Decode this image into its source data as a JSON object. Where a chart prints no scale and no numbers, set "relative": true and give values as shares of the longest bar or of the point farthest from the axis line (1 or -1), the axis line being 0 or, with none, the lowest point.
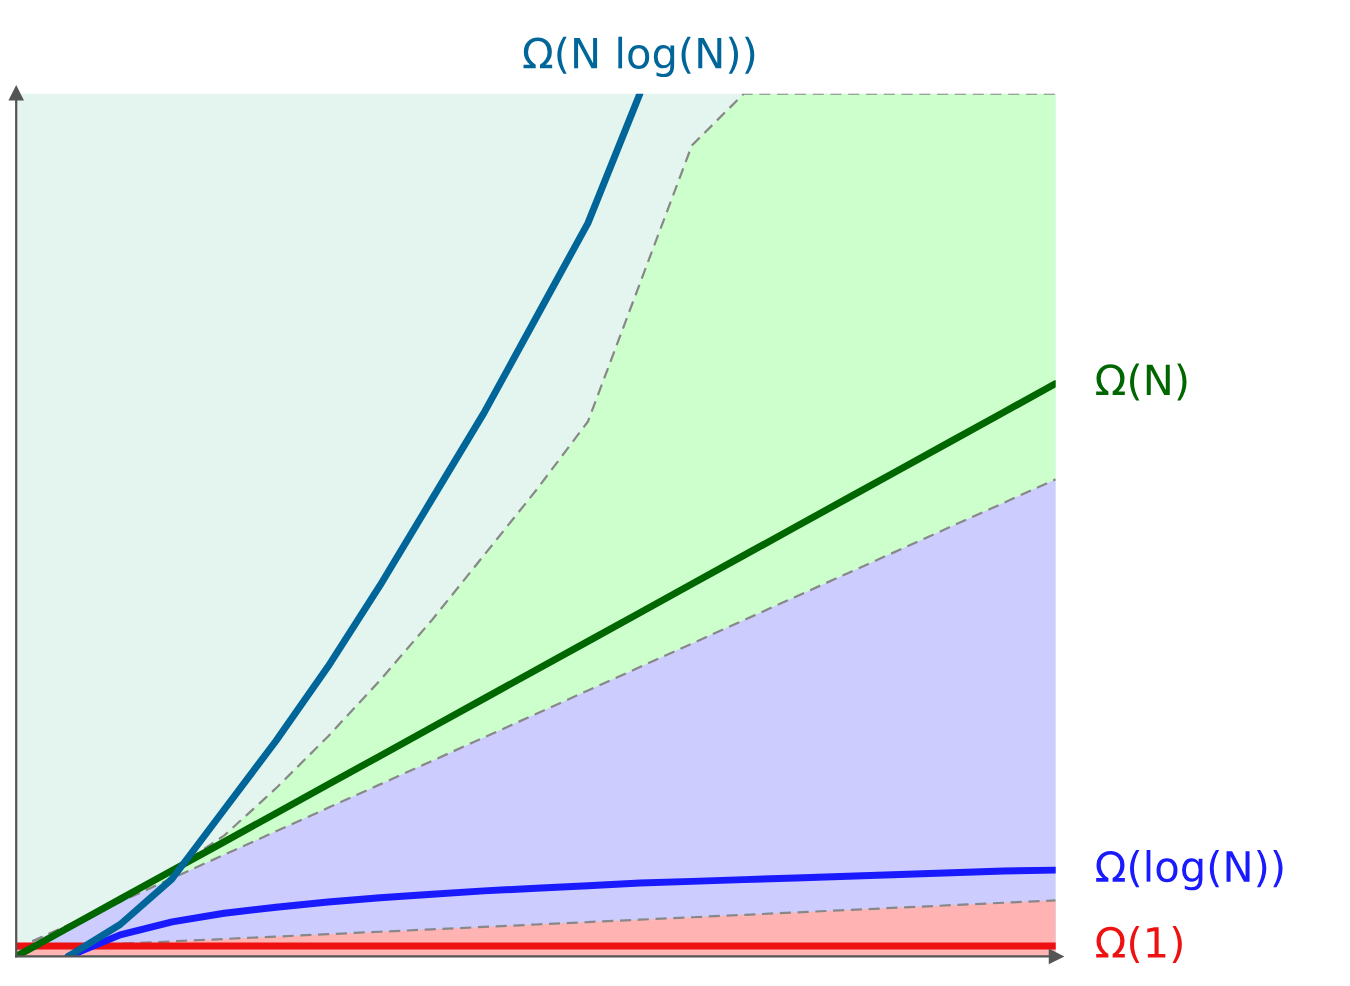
{
  "chart_data": {
    "type": "line",
    "relative": true,
    "marker": "none",
    "categories": [
      null,
      null,
      null,
      null,
      null,
      null,
      null,
      null,
      null,
      null,
      null,
      null,
      null,
      null,
      null,
      null,
      null,
      null,
      null,
      null,
      null
    ],
    "series": [
      {
        "type": "area",
        "line_style": "dashed",
        "color": "#ccffcc",
        "values": [
          0.009,
          0.0362,
          0.0634,
          0.1,
          0.14,
          0.195,
          0.255,
          0.32,
          0.39,
          0.465,
          0.54,
          0.62,
          0.78,
          0.94,
          1,
          1,
          1,
          1,
          1,
          1,
          1
        ]
      },
      {
        "type": "area",
        "line_style": "dashed",
        "color": "#ccccff",
        "values": [
          0.009,
          0.0362,
          0.0634,
          0.0906,
          0.1178,
          0.145,
          0.1722,
          0.1994,
          0.2266,
          0.2538,
          0.281,
          0.3082,
          0.3354,
          0.3626,
          0.3898,
          0.417,
          0.4442,
          0.4714,
          0.4986,
          0.5258,
          0.553
        ]
      },
      {
        "type": "area",
        "line_style": "dashed",
        "color": "#ffb3b3",
        "values": [
          0.009,
          0.0118,
          0.0146,
          0.0174,
          0.0202,
          0.023,
          0.0258,
          0.0286,
          0.0314,
          0.0342,
          0.037,
          0.0398,
          0.0426,
          0.0454,
          0.0482,
          0.051,
          0.0538,
          0.0566,
          0.0594,
          0.0622,
          0.065
        ]
      },
      {
        "line_style": "solid",
        "name": "Ω(1)",
        "color": "#ee1111",
        "values": [
          0.012,
          0.012,
          0.012,
          0.012,
          0.012,
          0.012,
          0.012,
          0.012,
          0.012,
          0.012,
          0.012,
          0.012,
          0.012,
          0.012,
          0.012,
          0.012,
          0.012,
          0.012,
          0.012,
          0.012,
          0.012
        ]
      },
      {
        "line_style": "solid",
        "name": "Ω(log(N))",
        "color": "#1a1aff",
        "values": [
          null,
          0,
          0.025,
          0.04,
          0.05,
          0.057,
          0.063,
          0.068,
          0.072,
          0.076,
          0.079,
          0.082,
          0.085,
          0.087,
          0.089,
          0.091,
          0.093,
          0.095,
          0.097,
          0.099,
          0.1
        ]
      },
      {
        "line_style": "solid",
        "name": "Ω(N)",
        "color": "#006600",
        "values": [
          0,
          0.0332,
          0.0664,
          0.0996,
          0.1328,
          0.166,
          0.1992,
          0.2324,
          0.2656,
          0.2988,
          0.332,
          0.3652,
          0.3984,
          0.4316,
          0.4648,
          0.498,
          0.5312,
          0.5644,
          0.5976,
          0.6308,
          0.664
        ]
      },
      {
        "line_style": "solid",
        "name": "Ω(N log(N))",
        "color": "#006699",
        "values": [
          null,
          0,
          0.037,
          0.09,
          0.17,
          0.25,
          0.336,
          0.43,
          0.53,
          0.63,
          0.74,
          0.85,
          1,
          null,
          null,
          null,
          null,
          null,
          null,
          null,
          null
        ]
      }
    ]
  }
}
